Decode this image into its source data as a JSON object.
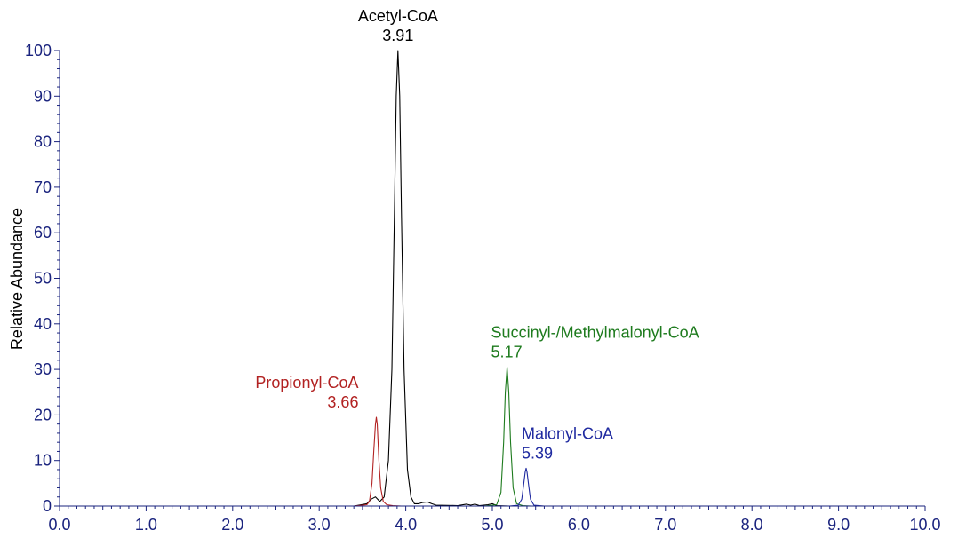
{
  "chart_data": {
    "type": "line",
    "ylabel": "Relative Abundance",
    "xlabel": "",
    "xlim": [
      0,
      10
    ],
    "ylim": [
      0,
      100
    ],
    "x_ticks": [
      0.0,
      1.0,
      2.0,
      3.0,
      4.0,
      5.0,
      6.0,
      7.0,
      8.0,
      9.0,
      10.0
    ],
    "x_tick_labels": [
      "0.0",
      "1.0",
      "2.0",
      "3.0",
      "4.0",
      "5.0",
      "6.0",
      "7.0",
      "8.0",
      "9.0",
      "10.0"
    ],
    "y_ticks": [
      0,
      10,
      20,
      30,
      40,
      50,
      60,
      70,
      80,
      90,
      100
    ],
    "y_tick_labels": [
      "0",
      "10",
      "20",
      "30",
      "40",
      "50",
      "60",
      "70",
      "80",
      "90",
      "100"
    ],
    "axis_color": "#1a237e",
    "grid": false,
    "series": [
      {
        "name": "Acetyl-CoA",
        "color": "#000000",
        "label_value": "3.91",
        "label_align": "center",
        "x": [
          3.4,
          3.55,
          3.6,
          3.65,
          3.7,
          3.75,
          3.8,
          3.84,
          3.87,
          3.89,
          3.91,
          3.93,
          3.95,
          3.98,
          4.02,
          4.06,
          4.1,
          4.15,
          4.2,
          4.25,
          4.3,
          4.35,
          4.6,
          4.7,
          4.75,
          4.8,
          4.85,
          4.95,
          5.0,
          5.05,
          5.2
        ],
        "y": [
          0,
          0.5,
          1.5,
          2.0,
          1.0,
          2.0,
          10,
          30,
          65,
          90,
          100,
          90,
          65,
          30,
          8,
          2,
          0.5,
          0.5,
          0.8,
          0.9,
          0.5,
          0.2,
          0.1,
          0.4,
          0.2,
          0.4,
          0.1,
          0.3,
          0.5,
          0.1,
          0
        ]
      },
      {
        "name": "Propionyl-CoA",
        "color": "#b22222",
        "label_value": "3.66",
        "label_align": "right",
        "x": [
          3.4,
          3.55,
          3.58,
          3.61,
          3.63,
          3.65,
          3.66,
          3.67,
          3.69,
          3.71,
          3.74,
          3.78,
          3.85,
          3.95
        ],
        "y": [
          0,
          0.3,
          1.0,
          5,
          12,
          18,
          19.5,
          18,
          10,
          4,
          1,
          0.3,
          0.1,
          0
        ]
      },
      {
        "name": "Succinyl-/Methylmalonyl-CoA",
        "color": "#1e7b1e",
        "label_value": "5.17",
        "label_align": "left",
        "x": [
          4.9,
          5.05,
          5.1,
          5.13,
          5.15,
          5.17,
          5.19,
          5.21,
          5.24,
          5.28,
          5.35,
          5.45
        ],
        "y": [
          0,
          0.3,
          3,
          14,
          25,
          30.5,
          25,
          14,
          4,
          0.5,
          0.1,
          0
        ]
      },
      {
        "name": "Malonyl-CoA",
        "color": "#1f2aa0",
        "label_value": "5.39",
        "label_align": "left",
        "x": [
          5.2,
          5.3,
          5.34,
          5.36,
          5.38,
          5.39,
          5.4,
          5.42,
          5.44,
          5.48,
          5.6
        ],
        "y": [
          0,
          0.2,
          1.5,
          4.5,
          7.5,
          8.3,
          7.5,
          4.5,
          1.5,
          0.2,
          0
        ]
      }
    ]
  }
}
